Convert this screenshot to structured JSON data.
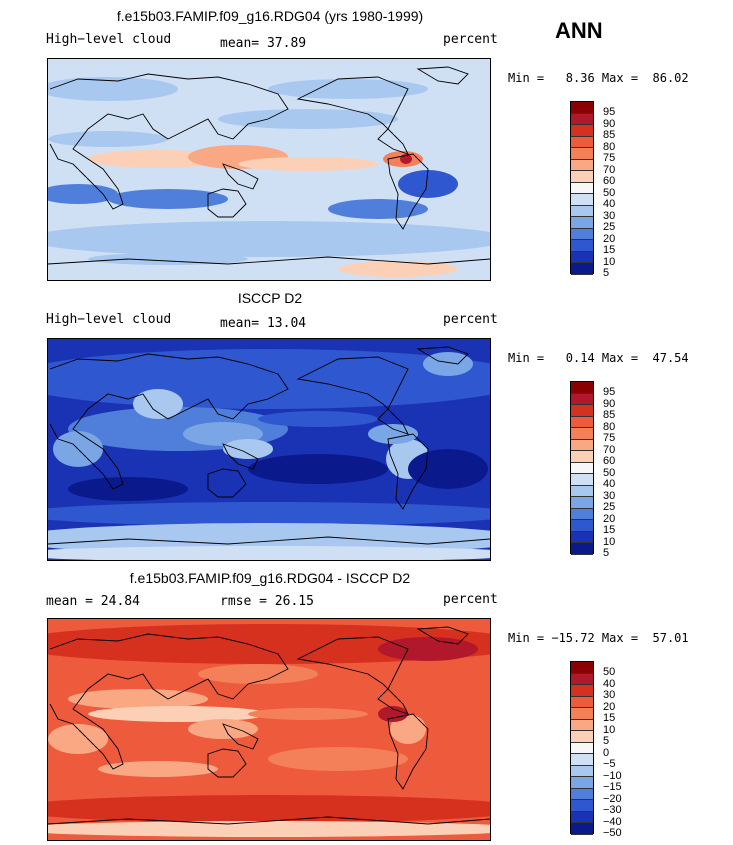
{
  "season": "ANN",
  "panels": [
    {
      "title": "f.e15b03.FAMIP.f09_g16.RDG04 (yrs 1980-1999)",
      "left_label": "High−level cloud",
      "center_label": "mean=  37.89",
      "right_label": "percent",
      "minmax": "Min =   8.36 Max =  86.02",
      "scheme": "model",
      "colorbar_labels": [
        "95",
        "90",
        "85",
        "80",
        "75",
        "70",
        "60",
        "50",
        "40",
        "30",
        "25",
        "20",
        "15",
        "10",
        "5"
      ]
    },
    {
      "title": "ISCCP D2",
      "left_label": "High−level cloud",
      "center_label": "mean=  13.04",
      "right_label": "percent",
      "minmax": "Min =   0.14 Max =  47.54",
      "scheme": "obs",
      "colorbar_labels": [
        "95",
        "90",
        "85",
        "80",
        "75",
        "70",
        "60",
        "50",
        "40",
        "30",
        "25",
        "20",
        "15",
        "10",
        "5"
      ]
    },
    {
      "title": "f.e15b03.FAMIP.f09_g16.RDG04 - ISCCP D2",
      "left_label": "mean =  24.84",
      "center_label": "rmse =  26.15",
      "right_label": "percent",
      "minmax": "Min = −15.72 Max =  57.01",
      "scheme": "diff",
      "colorbar_labels": [
        "50",
        "40",
        "30",
        "20",
        "15",
        "10",
        "5",
        "0",
        "−5",
        "−10",
        "−15",
        "−20",
        "−30",
        "−40",
        "−50"
      ]
    }
  ],
  "colors": {
    "scale": [
      "#8b0000",
      "#b2182b",
      "#d6301f",
      "#ee5a3c",
      "#f4805a",
      "#f9a883",
      "#fcd0b6",
      "#f7f7f7",
      "#cfe0f5",
      "#a8c8ef",
      "#7aa6e6",
      "#4f7fdb",
      "#2f57cf",
      "#1a33b5",
      "#0a1a8c"
    ],
    "land_outline": "#000000"
  }
}
